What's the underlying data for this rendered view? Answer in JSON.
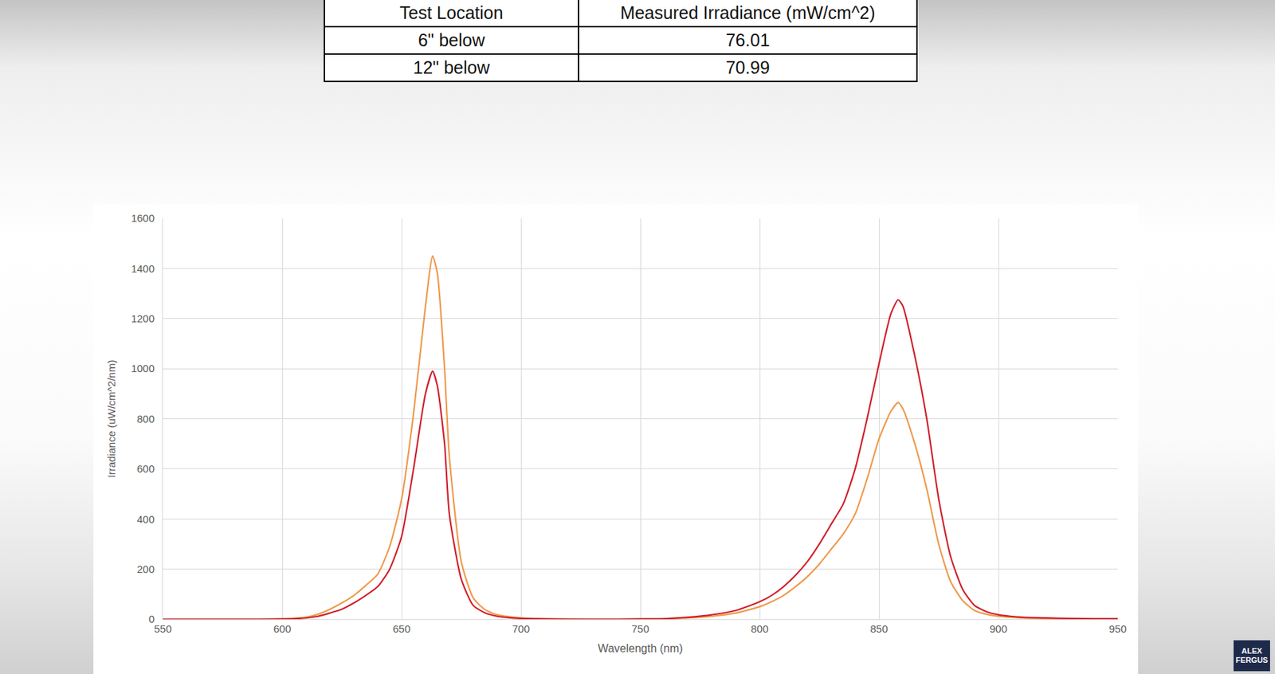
{
  "table": {
    "header": [
      "Test Location",
      "Measured Irradiance (mW/cm^2)"
    ],
    "rows": [
      [
        "6\" below",
        76.01
      ],
      [
        "12\" below",
        70.99
      ]
    ]
  },
  "chart_data": {
    "type": "line",
    "x_label": "Wavelength (nm)",
    "y_label": "Irradiance (uW/cm^2/nm)",
    "x": [
      550,
      560,
      570,
      580,
      590,
      600,
      605,
      610,
      615,
      620,
      625,
      630,
      635,
      640,
      645,
      650,
      655,
      660,
      663,
      665,
      668,
      670,
      675,
      680,
      685,
      690,
      695,
      700,
      710,
      720,
      730,
      740,
      750,
      760,
      770,
      780,
      790,
      800,
      805,
      810,
      815,
      820,
      825,
      830,
      835,
      840,
      845,
      850,
      855,
      858,
      860,
      865,
      870,
      875,
      880,
      885,
      890,
      895,
      900,
      905,
      910,
      920,
      930,
      940,
      950
    ],
    "series": [
      {
        "color": "#ee9a4c",
        "values": [
          0,
          0,
          0,
          0,
          0,
          1,
          4,
          8,
          20,
          40,
          65,
          95,
          135,
          180,
          290,
          480,
          820,
          1250,
          1450,
          1380,
          1000,
          650,
          230,
          85,
          38,
          18,
          10,
          5,
          2,
          1,
          0,
          0,
          1,
          2,
          5,
          12,
          25,
          50,
          70,
          95,
          130,
          170,
          220,
          280,
          340,
          420,
          560,
          720,
          830,
          865,
          840,
          700,
          520,
          300,
          150,
          75,
          35,
          20,
          12,
          8,
          5,
          3,
          2,
          1,
          1
        ]
      },
      {
        "color": "#d0202c",
        "values": [
          0,
          0,
          0,
          0,
          0,
          1,
          2,
          5,
          12,
          25,
          40,
          65,
          95,
          130,
          200,
          330,
          600,
          900,
          990,
          930,
          700,
          420,
          160,
          55,
          25,
          12,
          6,
          3,
          1,
          0,
          0,
          0,
          1,
          2,
          8,
          18,
          35,
          70,
          95,
          130,
          175,
          230,
          300,
          380,
          460,
          600,
          800,
          1020,
          1220,
          1275,
          1250,
          1050,
          800,
          480,
          250,
          120,
          55,
          30,
          18,
          12,
          8,
          5,
          3,
          2,
          2
        ]
      }
    ],
    "xlim": [
      550,
      950
    ],
    "xticks": [
      550,
      600,
      650,
      700,
      750,
      800,
      850,
      900,
      950
    ],
    "ylim": [
      0,
      1600
    ],
    "yticks": [
      0,
      200,
      400,
      600,
      800,
      1000,
      1200,
      1400,
      1600
    ],
    "grid": true
  },
  "watermark": [
    "ALEX",
    "FERGUS"
  ]
}
